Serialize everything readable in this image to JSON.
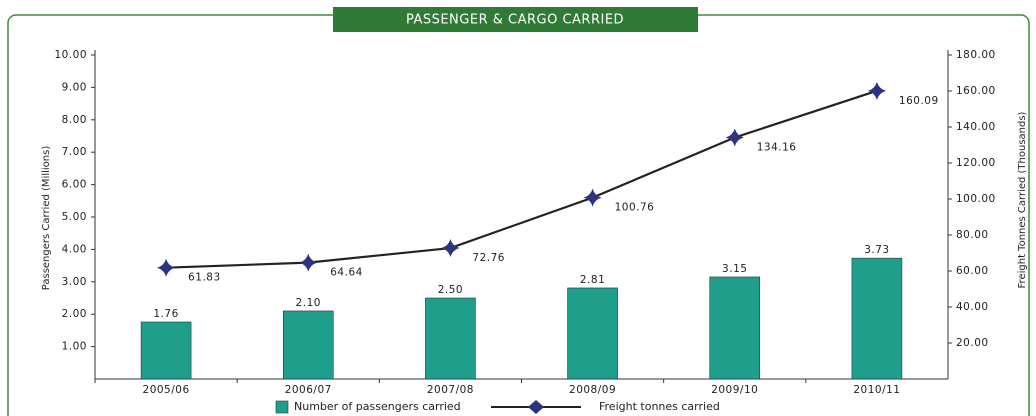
{
  "chart_data": {
    "type": "combo",
    "title": "PASSENGER & CARGO CARRIED",
    "y_label": "Passengers Carried (Millions)",
    "y2_label": "Freight Tonnes Carried (Thousands)",
    "categories": [
      "2005/06",
      "2006/07",
      "2007/08",
      "2008/09",
      "2009/10",
      "2010/11"
    ],
    "series": [
      {
        "name": "Number of passengers carried",
        "type": "bar",
        "color": "#1f9e8b",
        "values": [
          1.76,
          2.1,
          2.5,
          2.81,
          3.15,
          3.73
        ],
        "value_labels": [
          "1.76",
          "2.10",
          "2.50",
          "2.81",
          "3.15",
          "3.73"
        ]
      },
      {
        "name": "Freight tonnes carried",
        "type": "line",
        "color": "#222222",
        "marker_color": "#2c3380",
        "axis": "y2",
        "values": [
          61.83,
          64.64,
          72.76,
          100.76,
          134.16,
          160.09
        ]
      }
    ],
    "ylim": [
      0,
      10
    ],
    "yticks": [
      {
        "value": 1,
        "label": "1.00"
      },
      {
        "value": 2,
        "label": "2.00"
      },
      {
        "value": 3,
        "label": "3.00"
      },
      {
        "value": 4,
        "label": "4.00"
      },
      {
        "value": 5,
        "label": "5.00"
      },
      {
        "value": 6,
        "label": "6.00"
      },
      {
        "value": 7,
        "label": "7.00"
      },
      {
        "value": 8,
        "label": "8.00"
      },
      {
        "value": 9,
        "label": "9.00"
      },
      {
        "value": 10,
        "label": "10.00"
      }
    ],
    "y2lim": [
      0,
      180
    ],
    "y2ticks": [
      {
        "value": 20,
        "label": "20.00"
      },
      {
        "value": 40,
        "label": "40.00"
      },
      {
        "value": 60,
        "label": "60.00"
      },
      {
        "value": 80,
        "label": "80.00"
      },
      {
        "value": 100,
        "label": "100.00"
      },
      {
        "value": 120,
        "label": "120.00"
      },
      {
        "value": 140,
        "label": "140.00"
      },
      {
        "value": 160,
        "label": "160.00"
      },
      {
        "value": 180,
        "label": "180.00"
      }
    ],
    "legend": "bottom"
  }
}
